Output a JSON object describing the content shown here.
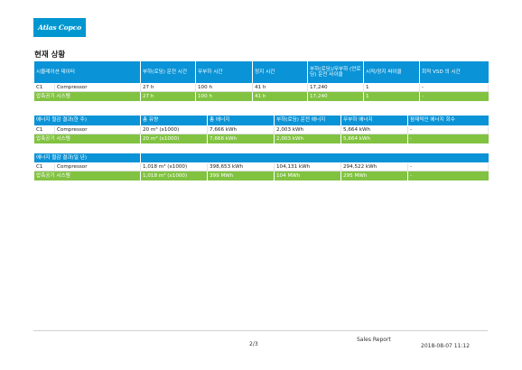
{
  "logo_text": "Atlas Copco",
  "page_title": "현재 상황",
  "table1": {
    "headers": [
      "시뮬레이션 데이터",
      "부하(로딩) 운전 시간",
      "무부하 시간",
      "정지 시간",
      "부하(로딩)/무부하 (언로딩) 운전 사이클",
      "시작/정지 싸이클",
      "회적 VSD 의 시간"
    ],
    "row1": [
      "C1",
      "Compressor",
      "27 h",
      "100 h",
      "41 h",
      "17,240",
      "1",
      "-"
    ],
    "sum": [
      "압축공기 시스템",
      "27 h",
      "100 h",
      "41 h",
      "17,240",
      "1",
      "-"
    ]
  },
  "table2": {
    "headers": [
      "에너지 절감 결과(한 주)",
      "총 유량",
      "총 에너지",
      "부하(로딩) 운전 에너지",
      "무부하 에너지",
      "잠재적인 에너지 회수"
    ],
    "row1": [
      "C1",
      "Compressor",
      "20 m³ (x1000)",
      "7,666 kWh",
      "2,003 kWh",
      "5,664 kWh",
      "-"
    ],
    "sum": [
      "압축공기 시스템",
      "20 m³ (x1000)",
      "7,666 kWh",
      "2,003 kWh",
      "5,664 kWh",
      "-"
    ]
  },
  "table3": {
    "header": "에너지 절감 결과(일 년)",
    "row1": [
      "C1",
      "Compressor",
      "1,018 m³ (x1000)",
      "398,653 kWh",
      "104,131 kWh",
      "294,522 kWh",
      "-"
    ],
    "sum": [
      "압축공기 시스템",
      "1,018 m³ (x1000)",
      "399 MWh",
      "104 MWh",
      "295 MWh",
      "-"
    ]
  },
  "footer": {
    "page": "2/3",
    "report": "Sales Report",
    "date": "2018-08-07 11:12"
  }
}
